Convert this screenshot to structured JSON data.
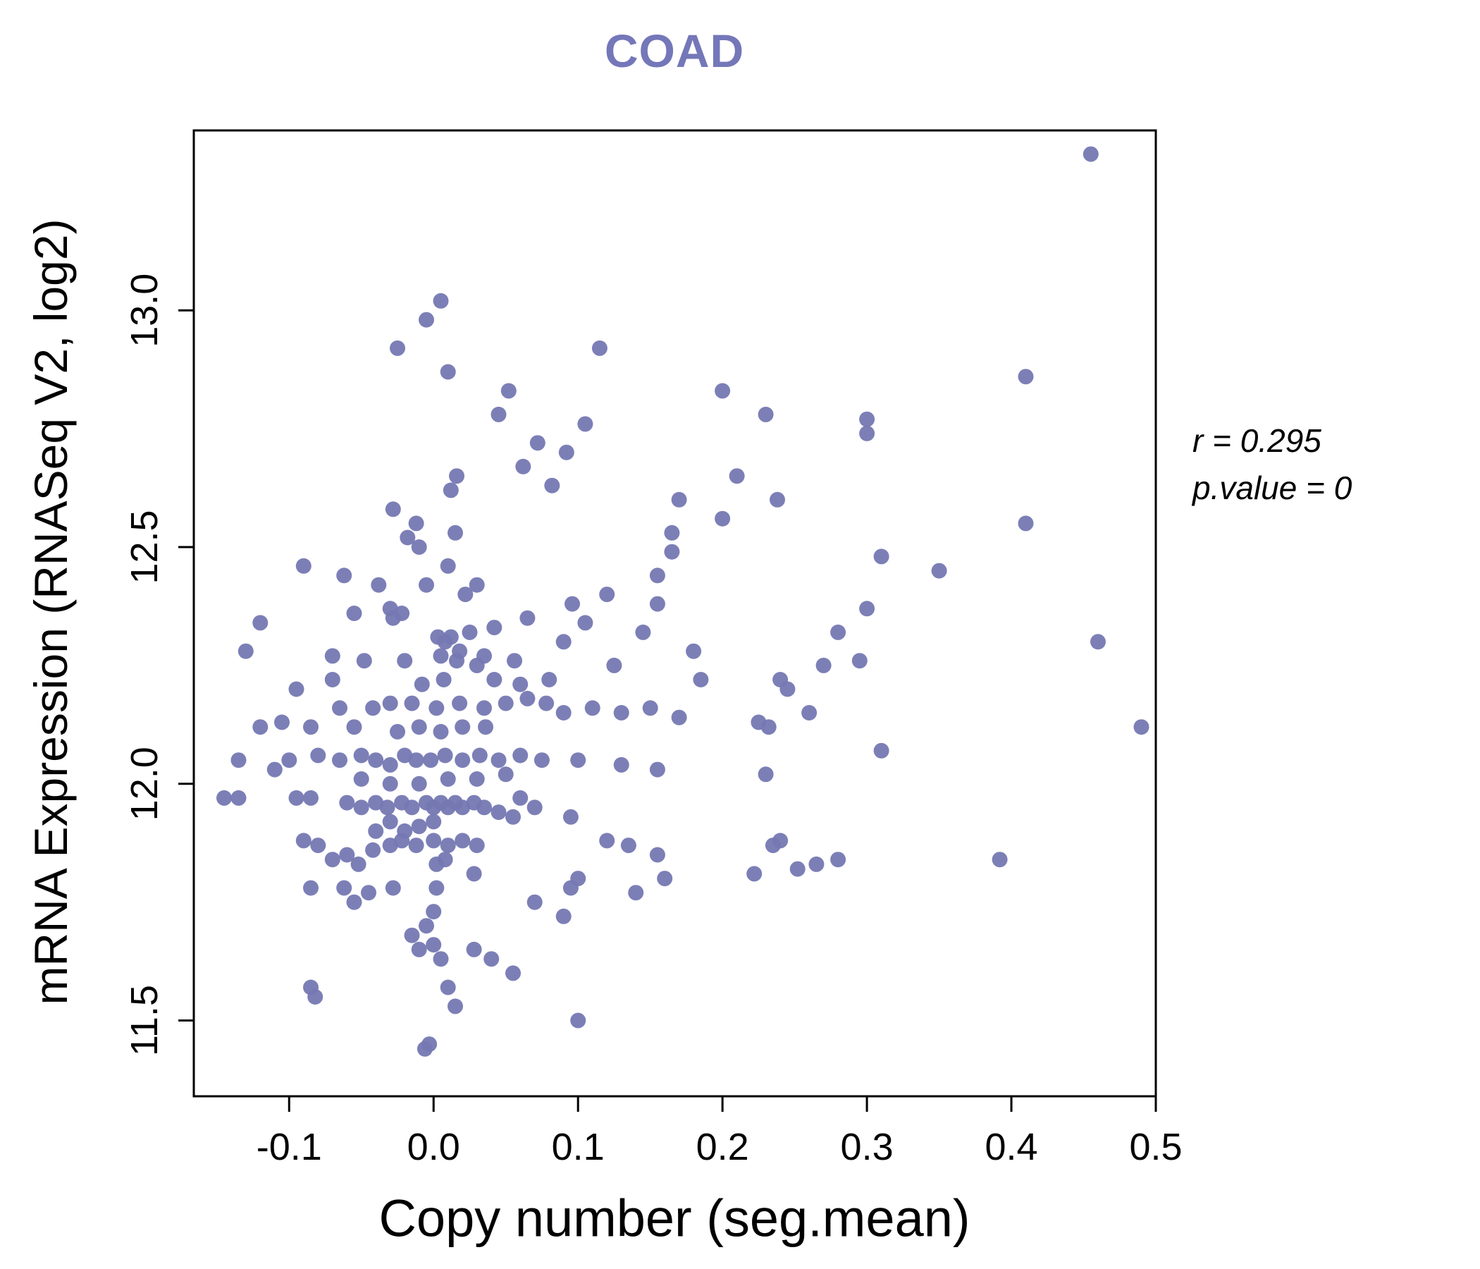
{
  "title": "COAD",
  "annotation": {
    "line1": "r = 0.295",
    "line2": "p.value = 0"
  },
  "colors": {
    "title": "#7477b8",
    "point": "#7578b2",
    "axis": "#000000"
  },
  "chart_data": {
    "type": "scatter",
    "title": "COAD",
    "xlabel": "Copy number (seg.mean)",
    "ylabel": "mRNA Expression (RNASeq V2, log2)",
    "xlim": [
      -0.166,
      0.5
    ],
    "ylim": [
      11.34,
      13.38
    ],
    "xticks": [
      -0.1,
      0,
      0.1,
      0.2,
      0.3,
      0.4,
      0.5
    ],
    "yticks": [
      11.5,
      12.0,
      12.5,
      13.0
    ],
    "grid": false,
    "legend": null,
    "correlation_r": 0.295,
    "p_value": 0,
    "point_color": "#7578b2",
    "points": [
      [
        0.455,
        13.33
      ],
      [
        0.005,
        13.02
      ],
      [
        -0.005,
        12.98
      ],
      [
        -0.025,
        12.92
      ],
      [
        0.115,
        12.92
      ],
      [
        0.01,
        12.87
      ],
      [
        0.41,
        12.86
      ],
      [
        0.2,
        12.83
      ],
      [
        0.052,
        12.83
      ],
      [
        0.045,
        12.78
      ],
      [
        0.23,
        12.78
      ],
      [
        0.3,
        12.77
      ],
      [
        0.105,
        12.76
      ],
      [
        0.3,
        12.74
      ],
      [
        0.072,
        12.72
      ],
      [
        0.092,
        12.7
      ],
      [
        0.062,
        12.67
      ],
      [
        0.21,
        12.65
      ],
      [
        0.082,
        12.63
      ],
      [
        0.016,
        12.65
      ],
      [
        0.012,
        12.62
      ],
      [
        0.238,
        12.6
      ],
      [
        0.17,
        12.6
      ],
      [
        -0.028,
        12.58
      ],
      [
        0.2,
        12.56
      ],
      [
        0.165,
        12.53
      ],
      [
        -0.012,
        12.55
      ],
      [
        -0.018,
        12.52
      ],
      [
        -0.01,
        12.5
      ],
      [
        0.41,
        12.55
      ],
      [
        0.015,
        12.53
      ],
      [
        0.165,
        12.49
      ],
      [
        0.31,
        12.48
      ],
      [
        0.01,
        12.46
      ],
      [
        -0.09,
        12.46
      ],
      [
        -0.062,
        12.44
      ],
      [
        0.155,
        12.44
      ],
      [
        -0.038,
        12.42
      ],
      [
        -0.005,
        12.42
      ],
      [
        0.03,
        12.42
      ],
      [
        0.35,
        12.45
      ],
      [
        0.022,
        12.4
      ],
      [
        0.12,
        12.4
      ],
      [
        0.155,
        12.38
      ],
      [
        -0.055,
        12.36
      ],
      [
        -0.03,
        12.37
      ],
      [
        -0.022,
        12.36
      ],
      [
        -0.028,
        12.35
      ],
      [
        0.096,
        12.38
      ],
      [
        0.065,
        12.35
      ],
      [
        -0.12,
        12.34
      ],
      [
        0.042,
        12.33
      ],
      [
        0.025,
        12.32
      ],
      [
        0.012,
        12.31
      ],
      [
        0.003,
        12.31
      ],
      [
        0.008,
        12.3
      ],
      [
        0.3,
        12.37
      ],
      [
        0.28,
        12.32
      ],
      [
        0.145,
        12.32
      ],
      [
        0.46,
        12.3
      ],
      [
        0.09,
        12.3
      ],
      [
        0.105,
        12.34
      ],
      [
        -0.13,
        12.28
      ],
      [
        -0.07,
        12.27
      ],
      [
        -0.048,
        12.26
      ],
      [
        -0.02,
        12.26
      ],
      [
        0.005,
        12.27
      ],
      [
        0.018,
        12.28
      ],
      [
        0.035,
        12.27
      ],
      [
        0.016,
        12.26
      ],
      [
        0.03,
        12.25
      ],
      [
        0.056,
        12.26
      ],
      [
        0.18,
        12.28
      ],
      [
        0.125,
        12.25
      ],
      [
        0.295,
        12.26
      ],
      [
        0.27,
        12.25
      ],
      [
        0.24,
        12.22
      ],
      [
        0.185,
        12.22
      ],
      [
        0.08,
        12.22
      ],
      [
        0.06,
        12.21
      ],
      [
        0.042,
        12.22
      ],
      [
        0.007,
        12.22
      ],
      [
        -0.008,
        12.21
      ],
      [
        -0.07,
        12.22
      ],
      [
        -0.095,
        12.2
      ],
      [
        -0.065,
        12.16
      ],
      [
        -0.042,
        12.16
      ],
      [
        -0.03,
        12.17
      ],
      [
        -0.015,
        12.17
      ],
      [
        0.002,
        12.16
      ],
      [
        0.018,
        12.17
      ],
      [
        0.035,
        12.16
      ],
      [
        0.05,
        12.17
      ],
      [
        0.065,
        12.18
      ],
      [
        0.078,
        12.17
      ],
      [
        0.09,
        12.15
      ],
      [
        0.11,
        12.16
      ],
      [
        0.13,
        12.15
      ],
      [
        0.15,
        12.16
      ],
      [
        0.17,
        12.14
      ],
      [
        0.225,
        12.13
      ],
      [
        0.232,
        12.12
      ],
      [
        0.245,
        12.2
      ],
      [
        0.26,
        12.15
      ],
      [
        0.036,
        12.12
      ],
      [
        0.02,
        12.12
      ],
      [
        0.005,
        12.11
      ],
      [
        -0.01,
        12.12
      ],
      [
        -0.025,
        12.11
      ],
      [
        -0.055,
        12.12
      ],
      [
        -0.085,
        12.12
      ],
      [
        -0.105,
        12.13
      ],
      [
        -0.12,
        12.12
      ],
      [
        0.49,
        12.12
      ],
      [
        -0.135,
        12.05
      ],
      [
        -0.11,
        12.03
      ],
      [
        -0.1,
        12.05
      ],
      [
        -0.08,
        12.06
      ],
      [
        -0.065,
        12.05
      ],
      [
        -0.05,
        12.06
      ],
      [
        -0.04,
        12.05
      ],
      [
        -0.03,
        12.04
      ],
      [
        -0.02,
        12.06
      ],
      [
        -0.012,
        12.05
      ],
      [
        -0.002,
        12.05
      ],
      [
        0.008,
        12.06
      ],
      [
        0.02,
        12.05
      ],
      [
        0.032,
        12.06
      ],
      [
        0.045,
        12.05
      ],
      [
        0.06,
        12.06
      ],
      [
        0.075,
        12.05
      ],
      [
        0.1,
        12.05
      ],
      [
        0.13,
        12.04
      ],
      [
        0.155,
        12.03
      ],
      [
        0.31,
        12.07
      ],
      [
        0.23,
        12.02
      ],
      [
        0.05,
        12.02
      ],
      [
        0.03,
        12.01
      ],
      [
        0.01,
        12.01
      ],
      [
        -0.01,
        12.0
      ],
      [
        -0.03,
        12.0
      ],
      [
        -0.05,
        12.01
      ],
      [
        -0.145,
        11.97
      ],
      [
        -0.135,
        11.97
      ],
      [
        -0.095,
        11.97
      ],
      [
        -0.085,
        11.97
      ],
      [
        -0.06,
        11.96
      ],
      [
        -0.05,
        11.95
      ],
      [
        -0.04,
        11.96
      ],
      [
        -0.032,
        11.95
      ],
      [
        -0.022,
        11.96
      ],
      [
        -0.015,
        11.95
      ],
      [
        -0.005,
        11.96
      ],
      [
        0,
        11.95
      ],
      [
        0.005,
        11.96
      ],
      [
        0.01,
        11.95
      ],
      [
        0.015,
        11.96
      ],
      [
        0.02,
        11.95
      ],
      [
        0.028,
        11.96
      ],
      [
        0.035,
        11.95
      ],
      [
        0.045,
        11.94
      ],
      [
        0.055,
        11.93
      ],
      [
        0.07,
        11.95
      ],
      [
        0.095,
        11.93
      ],
      [
        0.06,
        11.97
      ],
      [
        0,
        11.92
      ],
      [
        -0.01,
        11.91
      ],
      [
        -0.02,
        11.9
      ],
      [
        -0.03,
        11.92
      ],
      [
        -0.04,
        11.9
      ],
      [
        -0.09,
        11.88
      ],
      [
        -0.08,
        11.87
      ],
      [
        -0.07,
        11.84
      ],
      [
        -0.06,
        11.85
      ],
      [
        -0.052,
        11.83
      ],
      [
        -0.042,
        11.86
      ],
      [
        -0.03,
        11.87
      ],
      [
        -0.022,
        11.88
      ],
      [
        -0.012,
        11.87
      ],
      [
        0,
        11.88
      ],
      [
        0.01,
        11.87
      ],
      [
        0.02,
        11.88
      ],
      [
        0.03,
        11.87
      ],
      [
        0.008,
        11.84
      ],
      [
        0.002,
        11.83
      ],
      [
        0.12,
        11.88
      ],
      [
        0.135,
        11.87
      ],
      [
        0.155,
        11.85
      ],
      [
        0.24,
        11.88
      ],
      [
        0.235,
        11.87
      ],
      [
        0.28,
        11.84
      ],
      [
        0.265,
        11.83
      ],
      [
        0.392,
        11.84
      ],
      [
        0.222,
        11.81
      ],
      [
        0.252,
        11.82
      ],
      [
        -0.085,
        11.78
      ],
      [
        -0.062,
        11.78
      ],
      [
        -0.045,
        11.77
      ],
      [
        -0.055,
        11.75
      ],
      [
        -0.028,
        11.78
      ],
      [
        0.002,
        11.78
      ],
      [
        0.028,
        11.81
      ],
      [
        0.1,
        11.8
      ],
      [
        0.14,
        11.77
      ],
      [
        0.16,
        11.8
      ],
      [
        0.095,
        11.78
      ],
      [
        0,
        11.73
      ],
      [
        -0.005,
        11.7
      ],
      [
        0.07,
        11.75
      ],
      [
        0.09,
        11.72
      ],
      [
        -0.015,
        11.68
      ],
      [
        -0.01,
        11.65
      ],
      [
        0,
        11.66
      ],
      [
        0.005,
        11.63
      ],
      [
        0.028,
        11.65
      ],
      [
        0.04,
        11.63
      ],
      [
        0.055,
        11.6
      ],
      [
        -0.085,
        11.57
      ],
      [
        -0.082,
        11.55
      ],
      [
        0.01,
        11.57
      ],
      [
        0.015,
        11.53
      ],
      [
        0.1,
        11.5
      ],
      [
        -0.003,
        11.45
      ],
      [
        -0.006,
        11.44
      ]
    ]
  }
}
